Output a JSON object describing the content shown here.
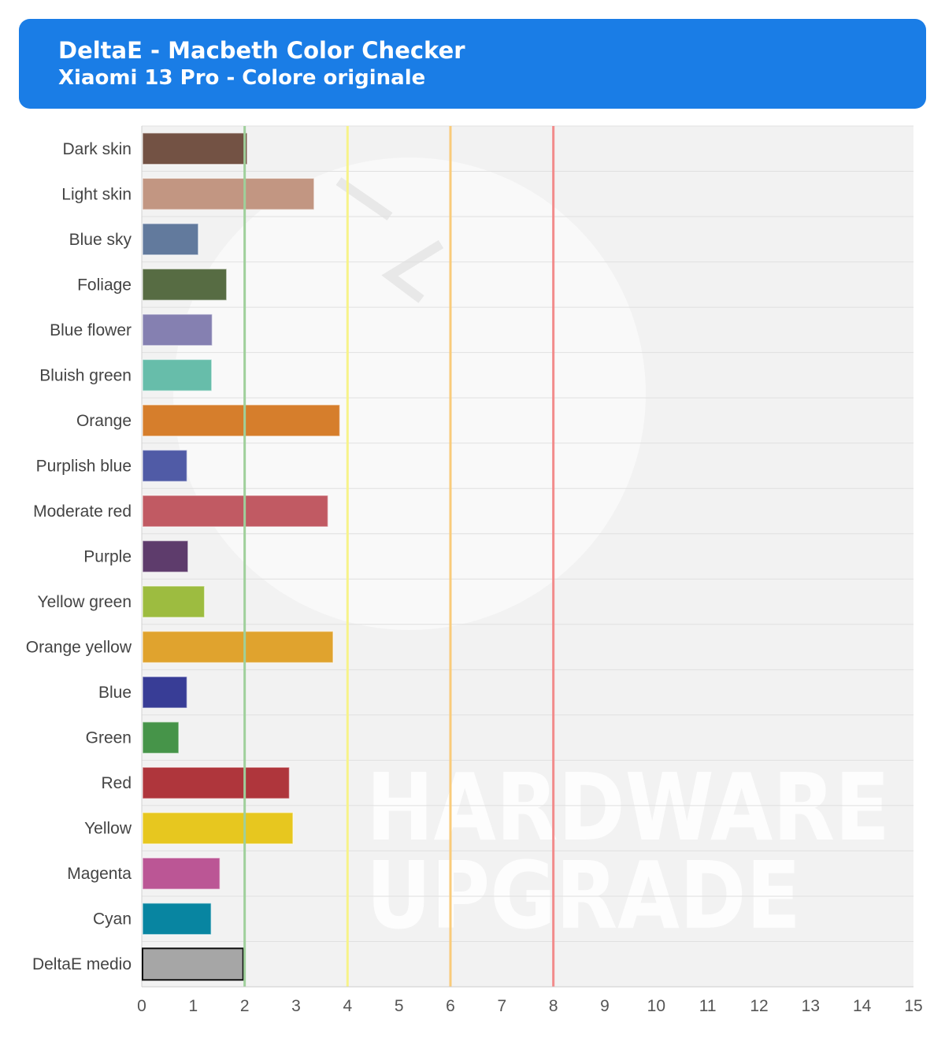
{
  "header": {
    "title": "DeltaE - Macbeth Color Checker",
    "subtitle": "Xiaomi 13 Pro - Colore originale"
  },
  "watermark": {
    "line1": "HARDWARE",
    "line2": "UPGRADE"
  },
  "chart_data": {
    "type": "bar",
    "orientation": "horizontal",
    "title": "DeltaE - Macbeth Color Checker",
    "subtitle": "Xiaomi 13 Pro - Colore originale",
    "xlim": [
      0,
      15
    ],
    "x_ticks": [
      "0",
      "1",
      "2",
      "3",
      "4",
      "5",
      "6",
      "7",
      "8",
      "9",
      "10",
      "11",
      "12",
      "13",
      "14",
      "15"
    ],
    "grid": true,
    "categories": [
      "Dark skin",
      "Light skin",
      "Blue sky",
      "Foliage",
      "Blue flower",
      "Bluish green",
      "Orange",
      "Purplish blue",
      "Moderate red",
      "Purple",
      "Yellow green",
      "Orange yellow",
      "Blue",
      "Green",
      "Red",
      "Yellow",
      "Magenta",
      "Cyan",
      "DeltaE medio"
    ],
    "values": [
      2.05,
      3.35,
      1.1,
      1.65,
      1.37,
      1.36,
      3.85,
      0.88,
      3.62,
      0.9,
      1.22,
      3.72,
      0.88,
      0.72,
      2.87,
      2.94,
      1.52,
      1.35,
      1.97
    ],
    "bar_colors": [
      "#735244",
      "#c29682",
      "#627a9d",
      "#576c43",
      "#8580b1",
      "#67bdaa",
      "#d67e2c",
      "#505ba6",
      "#c15a63",
      "#5e3c6c",
      "#9dbc40",
      "#e0a32e",
      "#383d96",
      "#469449",
      "#af363c",
      "#e7c71f",
      "#bb5695",
      "#0885a1",
      "#a6a6a6"
    ],
    "reference_lines": [
      {
        "value": 2,
        "color": "#9fd09b"
      },
      {
        "value": 4,
        "color": "#f7f38a"
      },
      {
        "value": 6,
        "color": "#f9cb7a"
      },
      {
        "value": 8,
        "color": "#f28b8b"
      }
    ]
  }
}
